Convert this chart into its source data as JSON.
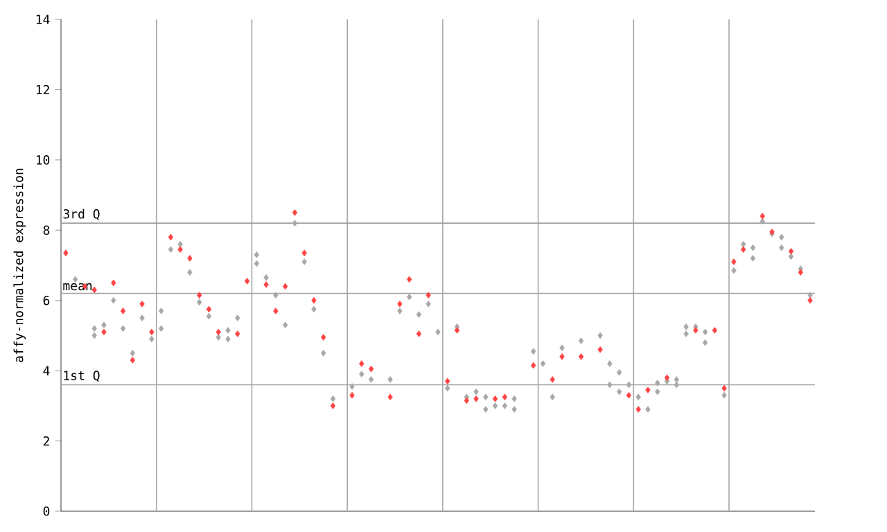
{
  "chart_data": {
    "type": "scatter",
    "ylabel": "affy-normalized expression",
    "marker": "diamond",
    "grid": "x",
    "tick_labels": "y",
    "categories": [
      null,
      null,
      null,
      null,
      null,
      null,
      null,
      null,
      null,
      null,
      null,
      null,
      null,
      null,
      null,
      null,
      null,
      null,
      null,
      null,
      null,
      null,
      null,
      null,
      null,
      null,
      null,
      null,
      null,
      null,
      null,
      null,
      null,
      null,
      null,
      null,
      null,
      null,
      null,
      null,
      null,
      null,
      null,
      null,
      null,
      null,
      null,
      null,
      null,
      null,
      null,
      null,
      null,
      null,
      null,
      null,
      null,
      null,
      null,
      null,
      null,
      null,
      null,
      null,
      null,
      null,
      null,
      null,
      null,
      null,
      null,
      null,
      null,
      null,
      null,
      null,
      null,
      null,
      null
    ],
    "ylim": [
      0,
      14
    ],
    "yticks": [
      0,
      2,
      4,
      6,
      8,
      10,
      12,
      14
    ],
    "ref_lines": [
      {
        "axis": "y",
        "value": 8.2,
        "label": "3rd Q",
        "color": "#a0a0a0"
      },
      {
        "axis": "y",
        "value": 6.2,
        "label": "mean",
        "color": "#a0a0a0"
      },
      {
        "axis": "y",
        "value": 3.6,
        "label": "1st Q",
        "color": "#a0a0a0"
      }
    ],
    "series": [
      {
        "color": "#a8a8a8",
        "values": [
          null,
          6.6,
          null,
          5.2,
          5.3,
          6.0,
          5.2,
          4.5,
          5.5,
          4.9,
          5.7,
          7.45,
          7.6,
          6.8,
          5.95,
          5.55,
          4.95,
          5.15,
          5.5,
          null,
          7.3,
          6.65,
          6.15,
          5.3,
          8.2,
          7.1,
          5.75,
          4.5,
          3.2,
          null,
          3.55,
          3.9,
          3.75,
          null,
          3.75,
          5.7,
          6.1,
          5.6,
          5.9,
          5.1,
          3.5,
          5.25,
          3.25,
          3.4,
          3.25,
          3.0,
          3.0,
          3.2,
          null,
          4.55,
          4.2,
          3.25,
          4.65,
          null,
          4.85,
          null,
          5.0,
          4.2,
          3.95,
          3.6,
          3.25,
          2.9,
          3.65,
          3.7,
          3.75,
          5.25,
          5.25,
          5.1,
          null,
          3.3,
          6.85,
          7.6,
          7.5,
          8.25,
          7.9,
          7.8,
          7.25,
          6.9,
          6.15
        ]
      },
      {
        "color": "#a8a8a8",
        "values": [
          null,
          null,
          null,
          5.0,
          null,
          null,
          null,
          null,
          null,
          null,
          5.2,
          null,
          null,
          null,
          null,
          null,
          null,
          4.9,
          null,
          null,
          7.05,
          null,
          null,
          null,
          null,
          null,
          null,
          null,
          null,
          null,
          null,
          null,
          null,
          null,
          null,
          null,
          null,
          null,
          null,
          null,
          null,
          null,
          null,
          null,
          2.9,
          null,
          null,
          2.9,
          null,
          null,
          null,
          null,
          null,
          null,
          null,
          null,
          null,
          3.6,
          3.4,
          null,
          null,
          null,
          3.4,
          null,
          3.6,
          5.05,
          null,
          4.8,
          null,
          null,
          null,
          null,
          7.2,
          null,
          null,
          7.5,
          null,
          null,
          null
        ]
      },
      {
        "color": "#ff4444",
        "values": [
          7.35,
          null,
          6.4,
          6.3,
          5.1,
          6.5,
          5.7,
          4.3,
          5.9,
          5.1,
          null,
          7.8,
          7.45,
          7.2,
          6.15,
          5.75,
          5.1,
          null,
          5.05,
          6.55,
          null,
          6.45,
          5.7,
          6.4,
          8.5,
          7.35,
          6.0,
          4.95,
          3.0,
          null,
          3.3,
          4.2,
          4.05,
          null,
          3.25,
          5.9,
          6.6,
          5.05,
          6.15,
          null,
          3.7,
          5.15,
          3.15,
          3.2,
          null,
          3.2,
          3.25,
          null,
          null,
          4.15,
          null,
          3.75,
          4.4,
          null,
          4.4,
          null,
          4.6,
          null,
          null,
          3.3,
          2.9,
          3.45,
          null,
          3.8,
          null,
          null,
          5.15,
          null,
          5.15,
          3.5,
          7.1,
          7.45,
          null,
          8.4,
          7.95,
          null,
          7.4,
          6.8,
          6.0
        ]
      }
    ]
  }
}
